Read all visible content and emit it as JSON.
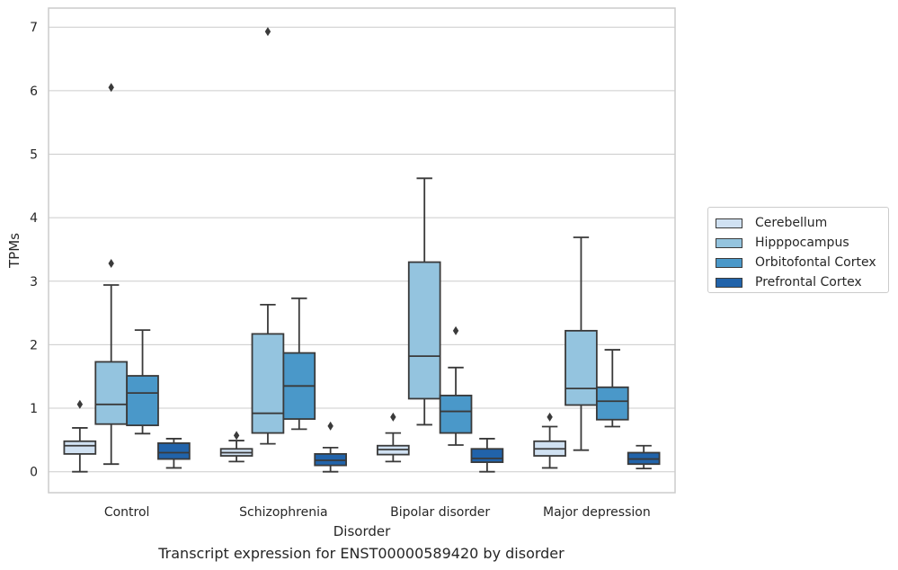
{
  "caption": "Transcript expression for ENST00000589420 by disorder",
  "chart_data": {
    "type": "box",
    "xlabel": "Disorder",
    "ylabel": "TPMs",
    "ylim": [
      -0.33,
      7.3
    ],
    "yticks": [
      0,
      1,
      2,
      3,
      4,
      5,
      6,
      7
    ],
    "grid": true,
    "legend_position": "right",
    "categories": [
      "Control",
      "Schizophrenia",
      "Bipolar disorder",
      "Major depression"
    ],
    "series": [
      {
        "name": "Cerebellum",
        "color": "#d0e1f2",
        "boxes": [
          {
            "whislo": 0.0,
            "q1": 0.28,
            "med": 0.41,
            "q3": 0.48,
            "whishi": 0.69,
            "fliers": [
              1.06
            ]
          },
          {
            "whislo": 0.16,
            "q1": 0.25,
            "med": 0.3,
            "q3": 0.36,
            "whishi": 0.49,
            "fliers": [
              0.57
            ]
          },
          {
            "whislo": 0.16,
            "q1": 0.27,
            "med": 0.35,
            "q3": 0.41,
            "whishi": 0.61,
            "fliers": [
              0.86
            ]
          },
          {
            "whislo": 0.06,
            "q1": 0.25,
            "med": 0.36,
            "q3": 0.48,
            "whishi": 0.71,
            "fliers": [
              0.86
            ]
          }
        ]
      },
      {
        "name": "Hipppocampus",
        "color": "#94c4df",
        "boxes": [
          {
            "whislo": 0.12,
            "q1": 0.75,
            "med": 1.06,
            "q3": 1.73,
            "whishi": 2.94,
            "fliers": [
              3.28,
              6.05
            ]
          },
          {
            "whislo": 0.44,
            "q1": 0.61,
            "med": 0.92,
            "q3": 2.17,
            "whishi": 2.63,
            "fliers": [
              6.93
            ]
          },
          {
            "whislo": 0.74,
            "q1": 1.15,
            "med": 1.82,
            "q3": 3.3,
            "whishi": 4.62,
            "fliers": []
          },
          {
            "whislo": 0.34,
            "q1": 1.05,
            "med": 1.31,
            "q3": 2.22,
            "whishi": 3.69,
            "fliers": []
          }
        ]
      },
      {
        "name": "Orbitofontal Cortex",
        "color": "#4a98c9",
        "boxes": [
          {
            "whislo": 0.6,
            "q1": 0.73,
            "med": 1.24,
            "q3": 1.51,
            "whishi": 2.23,
            "fliers": []
          },
          {
            "whislo": 0.67,
            "q1": 0.83,
            "med": 1.35,
            "q3": 1.87,
            "whishi": 2.73,
            "fliers": []
          },
          {
            "whislo": 0.42,
            "q1": 0.61,
            "med": 0.95,
            "q3": 1.2,
            "whishi": 1.64,
            "fliers": [
              2.22
            ]
          },
          {
            "whislo": 0.71,
            "q1": 0.82,
            "med": 1.11,
            "q3": 1.33,
            "whishi": 1.92,
            "fliers": []
          }
        ]
      },
      {
        "name": "Prefrontal Cortex",
        "color": "#2163aa",
        "boxes": [
          {
            "whislo": 0.06,
            "q1": 0.2,
            "med": 0.3,
            "q3": 0.45,
            "whishi": 0.52,
            "fliers": []
          },
          {
            "whislo": 0.0,
            "q1": 0.1,
            "med": 0.18,
            "q3": 0.28,
            "whishi": 0.38,
            "fliers": [
              0.72
            ]
          },
          {
            "whislo": 0.0,
            "q1": 0.15,
            "med": 0.21,
            "q3": 0.36,
            "whishi": 0.52,
            "fliers": []
          },
          {
            "whislo": 0.05,
            "q1": 0.12,
            "med": 0.2,
            "q3": 0.3,
            "whishi": 0.41,
            "fliers": []
          }
        ]
      }
    ]
  }
}
